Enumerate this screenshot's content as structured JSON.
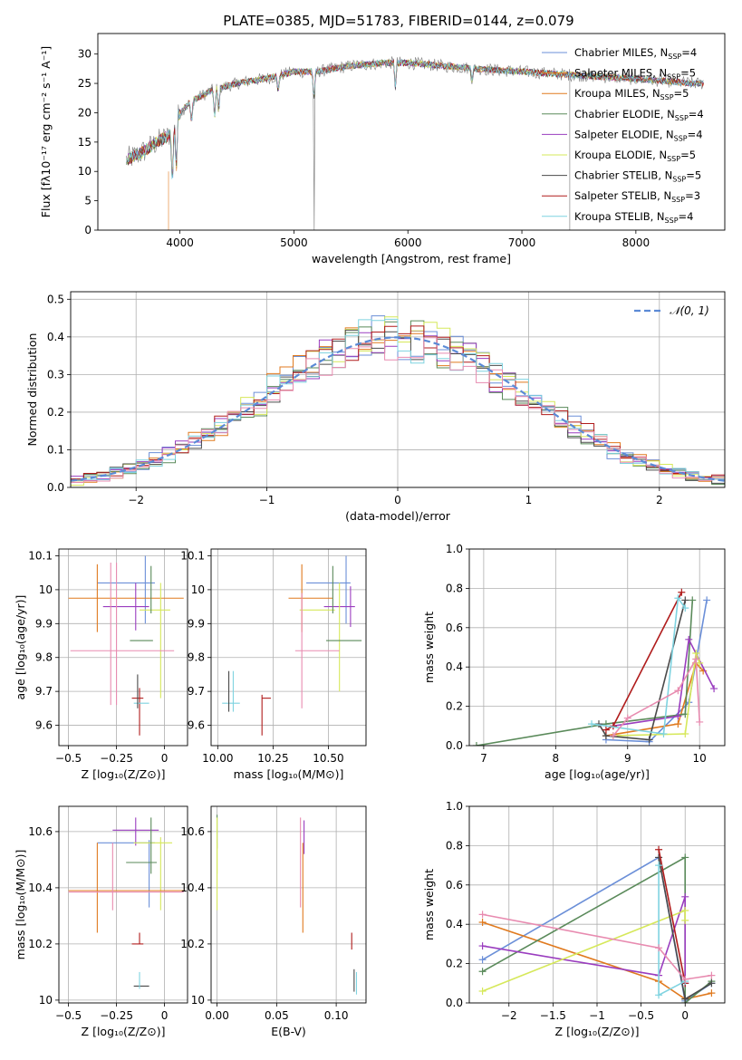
{
  "figure": {
    "title": "PLATE=0385, MJD=51783, FIBERID=0144, z=0.079"
  },
  "colors": {
    "c1": "#6b8fd8",
    "c2": "#e07a1f",
    "c3": "#5a8a5a",
    "c4": "#9a3dbf",
    "c5": "#d6e85a",
    "c6": "#4a4a4a",
    "c7": "#b01c1c",
    "c8": "#7fd3e0",
    "c9": "#e88bb0",
    "gray": "#8a8a8a"
  },
  "chart_data": [
    {
      "id": "spectrum",
      "type": "line",
      "xlabel": "wavelength [Angstrom, rest frame]",
      "ylabel": "Flux [fλ10⁻¹⁷ erg cm⁻² s⁻¹ A⁻¹]",
      "xlim": [
        3280,
        8780
      ],
      "ylim": [
        0,
        33.5
      ],
      "xticks": [
        4000,
        5000,
        6000,
        7000,
        8000
      ],
      "yticks": [
        0,
        5,
        10,
        15,
        20,
        25,
        30
      ],
      "grid": false,
      "legend_position": "top-right",
      "legend": [
        {
          "name": "Chabrier MILES, N",
          "sub": "SSP",
          "eq": "=4",
          "color": "c1"
        },
        {
          "name": "Salpeter MILES, N",
          "sub": "SSP",
          "eq": "=5",
          "color": "c2"
        },
        {
          "name": "Kroupa MILES, N",
          "sub": "SSP",
          "eq": "=5",
          "color": "c2"
        },
        {
          "name": "Chabrier ELODIE, N",
          "sub": "SSP",
          "eq": "=4",
          "color": "c3"
        },
        {
          "name": "Salpeter ELODIE, N",
          "sub": "SSP",
          "eq": "=4",
          "color": "c4"
        },
        {
          "name": "Kroupa ELODIE, N",
          "sub": "SSP",
          "eq": "=5",
          "color": "c5"
        },
        {
          "name": "Chabrier STELIB, N",
          "sub": "SSP",
          "eq": "=5",
          "color": "c6"
        },
        {
          "name": "Salpeter STELIB, N",
          "sub": "SSP",
          "eq": "=3",
          "color": "c7"
        },
        {
          "name": "Kroupa STELIB, N",
          "sub": "SSP",
          "eq": "=4",
          "color": "c8"
        }
      ],
      "continuum": [
        [
          3530,
          12
        ],
        [
          3650,
          13
        ],
        [
          3800,
          15
        ],
        [
          3900,
          16
        ],
        [
          4000,
          20
        ],
        [
          4100,
          22
        ],
        [
          4300,
          24
        ],
        [
          4500,
          25
        ],
        [
          4800,
          26
        ],
        [
          5000,
          27
        ],
        [
          5200,
          27
        ],
        [
          5500,
          28
        ],
        [
          5800,
          28.5
        ],
        [
          6000,
          28.5
        ],
        [
          6300,
          28
        ],
        [
          6600,
          27.5
        ],
        [
          7000,
          27
        ],
        [
          7400,
          26.5
        ],
        [
          7800,
          26
        ],
        [
          8200,
          25.5
        ],
        [
          8500,
          25
        ]
      ]
    },
    {
      "id": "histogram",
      "type": "step",
      "xlabel": "(data-model)/error",
      "ylabel": "Normed distribution",
      "xlim": [
        -2.5,
        2.5
      ],
      "ylim": [
        0,
        0.52
      ],
      "xticks": [
        -2,
        -1,
        0,
        1,
        2
      ],
      "yticks": [
        0.0,
        0.1,
        0.2,
        0.3,
        0.4,
        0.5
      ],
      "grid": true,
      "legend_position": "top-right",
      "legend_label": "𝒩(0, 1)",
      "bin_width": 0.1
    },
    {
      "id": "age-vs-Z",
      "type": "errorbar",
      "xlabel": "Z [log₁₀(Z/Z⊙)]",
      "ylabel": "age  [log₁₀(age/yr)]",
      "xlim": [
        -0.55,
        0.12
      ],
      "ylim": [
        9.54,
        10.12
      ],
      "xticks": [
        -0.5,
        -0.25,
        0.0
      ],
      "yticks": [
        9.6,
        9.7,
        9.8,
        9.9,
        10.0,
        10.1
      ],
      "grid": true,
      "points": [
        {
          "x": -0.2,
          "y": 10.02,
          "xerr": 0.15,
          "yerr": 0.0,
          "color": "c1"
        },
        {
          "x": -0.1,
          "y": 10.0,
          "xerr": 0.0,
          "yerr": 0.1,
          "color": "c1"
        },
        {
          "x": -0.2,
          "y": 9.975,
          "xerr": 0.3,
          "yerr": 0.0,
          "color": "c2"
        },
        {
          "x": -0.35,
          "y": 9.975,
          "xerr": 0.0,
          "yerr": 0.1,
          "color": "c2"
        },
        {
          "x": -0.2,
          "y": 9.95,
          "xerr": 0.12,
          "yerr": 0.0,
          "color": "c4"
        },
        {
          "x": -0.15,
          "y": 9.95,
          "xerr": 0.0,
          "yerr": 0.07,
          "color": "c4"
        },
        {
          "x": -0.05,
          "y": 9.94,
          "xerr": 0.08,
          "yerr": 0.0,
          "color": "c5"
        },
        {
          "x": -0.02,
          "y": 9.85,
          "xerr": 0.0,
          "yerr": 0.17,
          "color": "c5"
        },
        {
          "x": -0.12,
          "y": 9.85,
          "xerr": 0.06,
          "yerr": 0.0,
          "color": "c3"
        },
        {
          "x": -0.07,
          "y": 10.0,
          "xerr": 0.0,
          "yerr": 0.07,
          "color": "c3"
        },
        {
          "x": -0.22,
          "y": 9.82,
          "xerr": 0.27,
          "yerr": 0.0,
          "color": "c9"
        },
        {
          "x": -0.25,
          "y": 9.87,
          "xerr": 0.0,
          "yerr": 0.21,
          "color": "c9"
        },
        {
          "x": -0.28,
          "y": 9.87,
          "xerr": 0.0,
          "yerr": 0.21,
          "color": "c9"
        },
        {
          "x": -0.14,
          "y": 9.68,
          "xerr": 0.03,
          "yerr": 0.0,
          "color": "c7"
        },
        {
          "x": -0.13,
          "y": 9.64,
          "xerr": 0.0,
          "yerr": 0.07,
          "color": "c7"
        },
        {
          "x": -0.12,
          "y": 9.665,
          "xerr": 0.04,
          "yerr": 0.0,
          "color": "c8"
        },
        {
          "x": -0.14,
          "y": 9.7,
          "xerr": 0.0,
          "yerr": 0.05,
          "color": "c6"
        }
      ]
    },
    {
      "id": "age-vs-mass",
      "type": "errorbar",
      "xlabel": "mass [log₁₀(M/M⊙)]",
      "xlim": [
        9.97,
        10.67
      ],
      "ylim": [
        9.54,
        10.12
      ],
      "xticks": [
        10.0,
        10.25,
        10.5
      ],
      "xticklabels": [
        "10.00",
        "10.25",
        "10.50"
      ],
      "yticks": [
        9.6,
        9.7,
        9.8,
        9.9,
        10.0,
        10.1
      ],
      "grid": true,
      "points": [
        {
          "x": 10.5,
          "y": 10.02,
          "xerr": 0.1,
          "yerr": 0.0,
          "color": "c1"
        },
        {
          "x": 10.58,
          "y": 10.0,
          "xerr": 0.0,
          "yerr": 0.1,
          "color": "c1"
        },
        {
          "x": 10.42,
          "y": 9.975,
          "xerr": 0.1,
          "yerr": 0.0,
          "color": "c2"
        },
        {
          "x": 10.38,
          "y": 9.975,
          "xerr": 0.0,
          "yerr": 0.1,
          "color": "c2"
        },
        {
          "x": 10.55,
          "y": 9.95,
          "xerr": 0.07,
          "yerr": 0.0,
          "color": "c4"
        },
        {
          "x": 10.6,
          "y": 9.95,
          "xerr": 0.0,
          "yerr": 0.06,
          "color": "c4"
        },
        {
          "x": 10.45,
          "y": 9.94,
          "xerr": 0.08,
          "yerr": 0.0,
          "color": "c5"
        },
        {
          "x": 10.55,
          "y": 9.86,
          "xerr": 0.0,
          "yerr": 0.16,
          "color": "c5"
        },
        {
          "x": 10.57,
          "y": 9.85,
          "xerr": 0.08,
          "yerr": 0.0,
          "color": "c3"
        },
        {
          "x": 10.52,
          "y": 10.0,
          "xerr": 0.0,
          "yerr": 0.07,
          "color": "c3"
        },
        {
          "x": 10.45,
          "y": 9.82,
          "xerr": 0.1,
          "yerr": 0.0,
          "color": "c9"
        },
        {
          "x": 10.38,
          "y": 9.82,
          "xerr": 0.0,
          "yerr": 0.17,
          "color": "c9"
        },
        {
          "x": 10.22,
          "y": 9.68,
          "xerr": 0.02,
          "yerr": 0.0,
          "color": "c7"
        },
        {
          "x": 10.2,
          "y": 9.63,
          "xerr": 0.0,
          "yerr": 0.06,
          "color": "c7"
        },
        {
          "x": 10.06,
          "y": 9.665,
          "xerr": 0.04,
          "yerr": 0.0,
          "color": "c8"
        },
        {
          "x": 10.07,
          "y": 9.7,
          "xerr": 0.0,
          "yerr": 0.06,
          "color": "c8"
        },
        {
          "x": 10.05,
          "y": 9.7,
          "xerr": 0.0,
          "yerr": 0.06,
          "color": "c6"
        }
      ]
    },
    {
      "id": "weight-vs-age",
      "type": "line",
      "xlabel": "age  [log₁₀(age/yr)]",
      "ylabel": "mass weight",
      "xlim": [
        6.8,
        10.35
      ],
      "ylim": [
        0,
        1.0
      ],
      "xticks": [
        7,
        8,
        9,
        10
      ],
      "yticks": [
        0.0,
        0.2,
        0.4,
        0.6,
        0.8,
        1.0
      ],
      "grid": true,
      "series": [
        {
          "color": "c1",
          "x": [
            8.7,
            9.3,
            9.85,
            10.1
          ],
          "y": [
            0.03,
            0.02,
            0.22,
            0.74
          ]
        },
        {
          "color": "c2",
          "x": [
            8.7,
            9.7,
            9.95,
            10.05
          ],
          "y": [
            0.05,
            0.11,
            0.42,
            0.38
          ]
        },
        {
          "color": "c3",
          "x": [
            6.9,
            8.7,
            9.8,
            9.9
          ],
          "y": [
            0.0,
            0.11,
            0.16,
            0.74
          ]
        },
        {
          "color": "c4",
          "x": [
            8.8,
            9.7,
            9.85,
            10.2
          ],
          "y": [
            0.1,
            0.15,
            0.54,
            0.29
          ]
        },
        {
          "color": "c5",
          "x": [
            8.8,
            9.8,
            9.95,
            10.0
          ],
          "y": [
            0.05,
            0.06,
            0.47,
            0.42
          ]
        },
        {
          "color": "c6",
          "x": [
            8.6,
            8.7,
            9.3,
            9.8
          ],
          "y": [
            0.11,
            0.05,
            0.03,
            0.74
          ]
        },
        {
          "color": "c7",
          "x": [
            8.7,
            8.8,
            9.75
          ],
          "y": [
            0.08,
            0.1,
            0.78
          ]
        },
        {
          "color": "c8",
          "x": [
            8.5,
            9.5,
            9.7,
            9.8
          ],
          "y": [
            0.11,
            0.06,
            0.75,
            0.7
          ]
        },
        {
          "color": "c9",
          "x": [
            8.8,
            9.0,
            9.7,
            9.95,
            10.0
          ],
          "y": [
            0.05,
            0.14,
            0.28,
            0.44,
            0.12
          ]
        }
      ]
    },
    {
      "id": "mass-vs-Z",
      "type": "errorbar",
      "xlabel": "Z [log₁₀(Z/Z⊙)]",
      "ylabel": "mass [log₁₀(M/M⊙)]",
      "xlim": [
        -0.55,
        0.12
      ],
      "ylim": [
        9.99,
        10.69
      ],
      "xticks": [
        -0.5,
        -0.25,
        0.0
      ],
      "yticks": [
        10.0,
        10.2,
        10.4,
        10.6
      ],
      "grid": true,
      "points": [
        {
          "x": -0.15,
          "y": 10.605,
          "xerr": 0.12,
          "yerr": 0.0,
          "color": "c4"
        },
        {
          "x": -0.15,
          "y": 10.6,
          "xerr": 0.0,
          "yerr": 0.05,
          "color": "c4"
        },
        {
          "x": -0.2,
          "y": 10.56,
          "xerr": 0.15,
          "yerr": 0.0,
          "color": "c1"
        },
        {
          "x": -0.08,
          "y": 10.45,
          "xerr": 0.0,
          "yerr": 0.12,
          "color": "c1"
        },
        {
          "x": -0.06,
          "y": 10.56,
          "xerr": 0.1,
          "yerr": 0.0,
          "color": "c5"
        },
        {
          "x": -0.02,
          "y": 10.45,
          "xerr": 0.0,
          "yerr": 0.13,
          "color": "c5"
        },
        {
          "x": -0.12,
          "y": 10.49,
          "xerr": 0.08,
          "yerr": 0.0,
          "color": "c3"
        },
        {
          "x": -0.07,
          "y": 10.55,
          "xerr": 0.0,
          "yerr": 0.1,
          "color": "c3"
        },
        {
          "x": -0.2,
          "y": 10.39,
          "xerr": 0.3,
          "yerr": 0.0,
          "color": "c2"
        },
        {
          "x": -0.35,
          "y": 10.4,
          "xerr": 0.0,
          "yerr": 0.16,
          "color": "c2"
        },
        {
          "x": -0.2,
          "y": 10.385,
          "xerr": 0.3,
          "yerr": 0.0,
          "color": "c9"
        },
        {
          "x": -0.27,
          "y": 10.44,
          "xerr": 0.0,
          "yerr": 0.12,
          "color": "c9"
        },
        {
          "x": -0.14,
          "y": 10.2,
          "xerr": 0.03,
          "yerr": 0.0,
          "color": "c7"
        },
        {
          "x": -0.13,
          "y": 10.22,
          "xerr": 0.0,
          "yerr": 0.02,
          "color": "c7"
        },
        {
          "x": -0.12,
          "y": 10.05,
          "xerr": 0.04,
          "yerr": 0.0,
          "color": "c6"
        },
        {
          "x": -0.13,
          "y": 10.07,
          "xerr": 0.0,
          "yerr": 0.03,
          "color": "c8"
        }
      ]
    },
    {
      "id": "mass-vs-EBV",
      "type": "errorbar",
      "xlabel": "E(B-V)",
      "xlim": [
        -0.005,
        0.125
      ],
      "ylim": [
        9.99,
        10.69
      ],
      "xticks": [
        0.0,
        0.05,
        0.1
      ],
      "xticklabels": [
        "0.00",
        "0.05",
        "0.10"
      ],
      "yticks": [
        10.0,
        10.2,
        10.4,
        10.6
      ],
      "grid": true,
      "points": [
        {
          "x": 0.0,
          "y": 10.6,
          "xerr": 0.0,
          "yerr": 0.06,
          "color": "c3"
        },
        {
          "x": 0.0,
          "y": 10.55,
          "xerr": 0.0,
          "yerr": 0.1,
          "color": "c5"
        },
        {
          "x": 0.0,
          "y": 10.44,
          "xerr": 0.0,
          "yerr": 0.12,
          "color": "c5"
        },
        {
          "x": 0.07,
          "y": 10.49,
          "xerr": 0.0,
          "yerr": 0.16,
          "color": "c9"
        },
        {
          "x": 0.072,
          "y": 10.4,
          "xerr": 0.0,
          "yerr": 0.16,
          "color": "c2"
        },
        {
          "x": 0.073,
          "y": 10.58,
          "xerr": 0.0,
          "yerr": 0.06,
          "color": "c4"
        },
        {
          "x": 0.113,
          "y": 10.21,
          "xerr": 0.0,
          "yerr": 0.03,
          "color": "c7"
        },
        {
          "x": 0.115,
          "y": 10.07,
          "xerr": 0.0,
          "yerr": 0.04,
          "color": "c6"
        },
        {
          "x": 0.117,
          "y": 10.06,
          "xerr": 0.0,
          "yerr": 0.04,
          "color": "c8"
        }
      ]
    },
    {
      "id": "weight-vs-Z",
      "type": "line",
      "xlabel": "Z [log₁₀(Z/Z⊙)]",
      "ylabel": "mass weight",
      "xlim": [
        -2.45,
        0.45
      ],
      "ylim": [
        0,
        1.0
      ],
      "xticks": [
        -2.0,
        -1.5,
        -1.0,
        -0.5,
        0.0
      ],
      "yticks": [
        0.0,
        0.2,
        0.4,
        0.6,
        0.8,
        1.0
      ],
      "grid": true,
      "series": [
        {
          "color": "c1",
          "x": [
            -2.3,
            -0.3,
            0.0,
            0.3
          ],
          "y": [
            0.22,
            0.74,
            0.01,
            0.1
          ]
        },
        {
          "color": "c2",
          "x": [
            -2.3,
            -0.3,
            0.0,
            0.3
          ],
          "y": [
            0.41,
            0.11,
            0.02,
            0.05
          ]
        },
        {
          "color": "c3",
          "x": [
            -2.3,
            -0.0,
            0.0,
            0.3
          ],
          "y": [
            0.16,
            0.74,
            0.0,
            0.11
          ]
        },
        {
          "color": "c4",
          "x": [
            -2.3,
            -0.3,
            0.0,
            0.0
          ],
          "y": [
            0.29,
            0.14,
            0.54,
            0.1
          ]
        },
        {
          "color": "c5",
          "x": [
            -2.3,
            0.0,
            0.0
          ],
          "y": [
            0.06,
            0.47,
            0.42
          ]
        },
        {
          "color": "c6",
          "x": [
            -0.3,
            0.0,
            0.3
          ],
          "y": [
            0.74,
            0.02,
            0.1
          ]
        },
        {
          "color": "c7",
          "x": [
            -0.3,
            0.0
          ],
          "y": [
            0.78,
            0.1
          ]
        },
        {
          "color": "c8",
          "x": [
            -0.3,
            -0.3,
            0.0
          ],
          "y": [
            0.7,
            0.04,
            0.11
          ]
        },
        {
          "color": "c9",
          "x": [
            -2.3,
            -0.3,
            0.0,
            0.3
          ],
          "y": [
            0.45,
            0.28,
            0.12,
            0.14
          ]
        }
      ]
    }
  ]
}
